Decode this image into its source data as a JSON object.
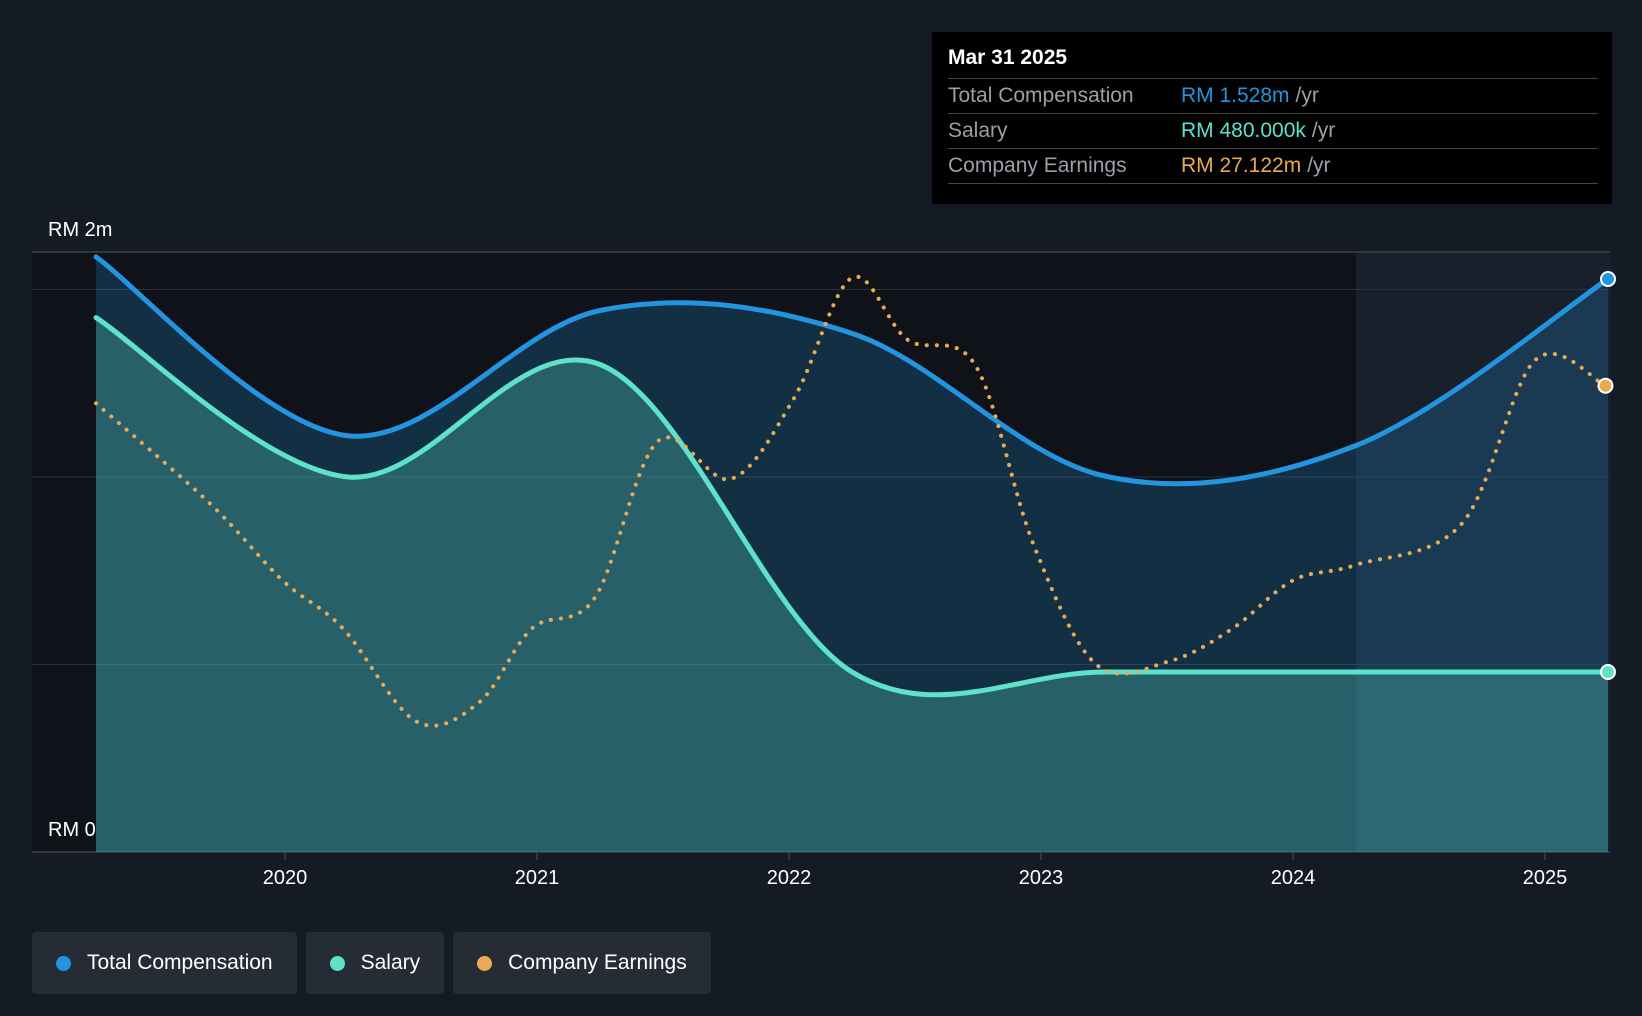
{
  "chart_data": {
    "type": "line",
    "title": "",
    "xlabel": "",
    "ylabel": "",
    "ylim": [
      0,
      1.6
    ],
    "y_unit": "RM m",
    "y_tick_labels": {
      "top": "RM 2m",
      "bottom": "RM 0"
    },
    "gridlines": [
      0.5,
      1.0,
      1.5
    ],
    "x_ticks": [
      "2020",
      "2021",
      "2022",
      "2023",
      "2024",
      "2025"
    ],
    "x_range": [
      2019.25,
      2025.25
    ],
    "forecast_shade_start": 2024.25,
    "series": [
      {
        "name": "Total Compensation",
        "color": "#2394df",
        "style": "solid",
        "x": [
          2019.25,
          2020.25,
          2021.25,
          2022.25,
          2023.25,
          2024.25,
          2025.25
        ],
        "values": [
          1.587,
          1.11,
          1.444,
          1.383,
          1.003,
          1.084,
          1.528
        ]
      },
      {
        "name": "Salary",
        "color": "#5ee2c9",
        "style": "solid",
        "x": [
          2019.25,
          2020.25,
          2021.25,
          2022.25,
          2023.25,
          2024.25,
          2025.25
        ],
        "values": [
          1.425,
          1.0,
          1.3,
          0.48,
          0.48,
          0.48,
          0.48
        ]
      },
      {
        "name": "Company Earnings",
        "color": "#e9aa55",
        "style": "dotted",
        "unit": "RM m (secondary scale)",
        "ylim": [
          0,
          34.9
        ],
        "x": [
          2019.25,
          2019.7,
          2019.99,
          2020.23,
          2020.52,
          2020.77,
          2020.98,
          2021.23,
          2021.48,
          2021.77,
          2022.02,
          2022.25,
          2022.47,
          2022.74,
          2022.97,
          2023.22,
          2023.51,
          2023.76,
          2024.0,
          2024.25,
          2024.67,
          2024.96,
          2025.24
        ],
        "values": [
          26.1,
          20.3,
          15.8,
          13.0,
          7.6,
          8.7,
          13.0,
          14.8,
          23.9,
          21.7,
          26.4,
          33.4,
          29.8,
          28.3,
          17.9,
          10.9,
          11.1,
          13.0,
          15.8,
          16.7,
          19.1,
          28.6,
          27.122
        ]
      }
    ]
  },
  "tooltip": {
    "date": "Mar 31 2025",
    "rows": [
      {
        "label": "Total Compensation",
        "value": "RM 1.528m",
        "unit": "/yr",
        "color": "#2394df"
      },
      {
        "label": "Salary",
        "value": "RM 480.000k",
        "unit": "/yr",
        "color": "#5ee2c9"
      },
      {
        "label": "Company Earnings",
        "value": "RM 27.122m",
        "unit": "/yr",
        "color": "#e9aa55"
      }
    ]
  },
  "legend": [
    {
      "label": "Total Compensation",
      "color": "#2394df"
    },
    {
      "label": "Salary",
      "color": "#5ee2c9"
    },
    {
      "label": "Company Earnings",
      "color": "#e9aa55"
    }
  ]
}
